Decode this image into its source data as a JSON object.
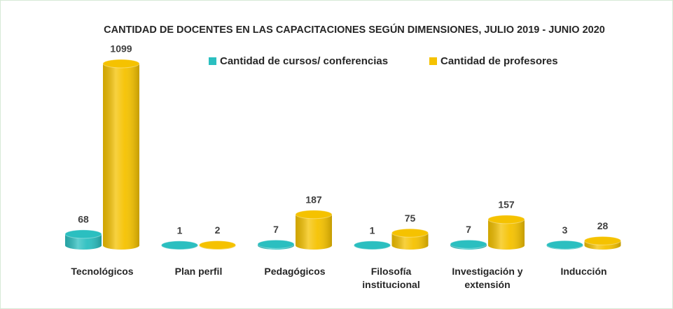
{
  "chart_data": {
    "type": "bar3d",
    "title": "CANTIDAD DE DOCENTES EN LAS CAPACITACIONES SEGÚN DIMENSIONES, JULIO 2019 - JUNIO 2020",
    "categories": [
      "Tecnológicos",
      "Plan perfil",
      "Pedagógicos",
      "Filosofía institucional",
      "Investigación y extensión",
      "Inducción"
    ],
    "series": [
      {
        "name": "Cantidad de cursos/ conferencias",
        "color": "#2bbfc0",
        "values": [
          68,
          1,
          7,
          1,
          7,
          3
        ]
      },
      {
        "name": "Cantidad de profesores",
        "color": "#f5c200",
        "values": [
          1099,
          2,
          187,
          75,
          157,
          28
        ]
      }
    ],
    "legend": "top"
  }
}
